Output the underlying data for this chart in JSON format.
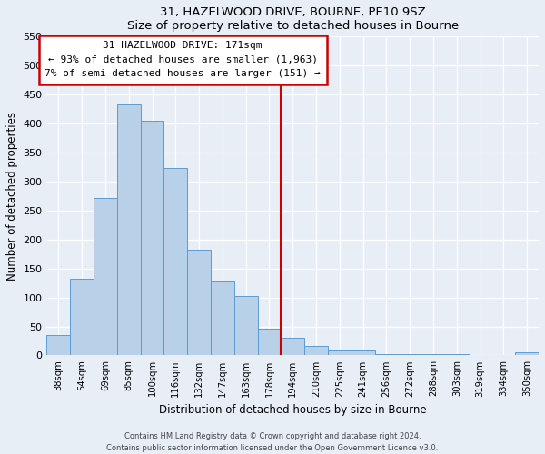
{
  "title": "31, HAZELWOOD DRIVE, BOURNE, PE10 9SZ",
  "subtitle": "Size of property relative to detached houses in Bourne",
  "xlabel": "Distribution of detached houses by size in Bourne",
  "ylabel": "Number of detached properties",
  "footer_line1": "Contains HM Land Registry data © Crown copyright and database right 2024.",
  "footer_line2": "Contains public sector information licensed under the Open Government Licence v3.0.",
  "bar_labels": [
    "38sqm",
    "54sqm",
    "69sqm",
    "85sqm",
    "100sqm",
    "116sqm",
    "132sqm",
    "147sqm",
    "163sqm",
    "178sqm",
    "194sqm",
    "210sqm",
    "225sqm",
    "241sqm",
    "256sqm",
    "272sqm",
    "288sqm",
    "303sqm",
    "319sqm",
    "334sqm",
    "350sqm"
  ],
  "bar_values": [
    35,
    133,
    272,
    433,
    405,
    323,
    183,
    128,
    103,
    46,
    30,
    17,
    8,
    8,
    3,
    3,
    2,
    2,
    1,
    1,
    5
  ],
  "bar_color": "#b8d0e8",
  "bar_edge_color": "#5b9bd5",
  "vline_x": 9.5,
  "vline_color": "#cc0000",
  "annotation_title": "31 HAZELWOOD DRIVE: 171sqm",
  "annotation_line1": "← 93% of detached houses are smaller (1,963)",
  "annotation_line2": "7% of semi-detached houses are larger (151) →",
  "annotation_box_color": "#ffffff",
  "annotation_box_edge": "#cc0000",
  "ylim": [
    0,
    550
  ],
  "yticks": [
    0,
    50,
    100,
    150,
    200,
    250,
    300,
    350,
    400,
    450,
    500,
    550
  ],
  "background_color": "#e8eef5"
}
